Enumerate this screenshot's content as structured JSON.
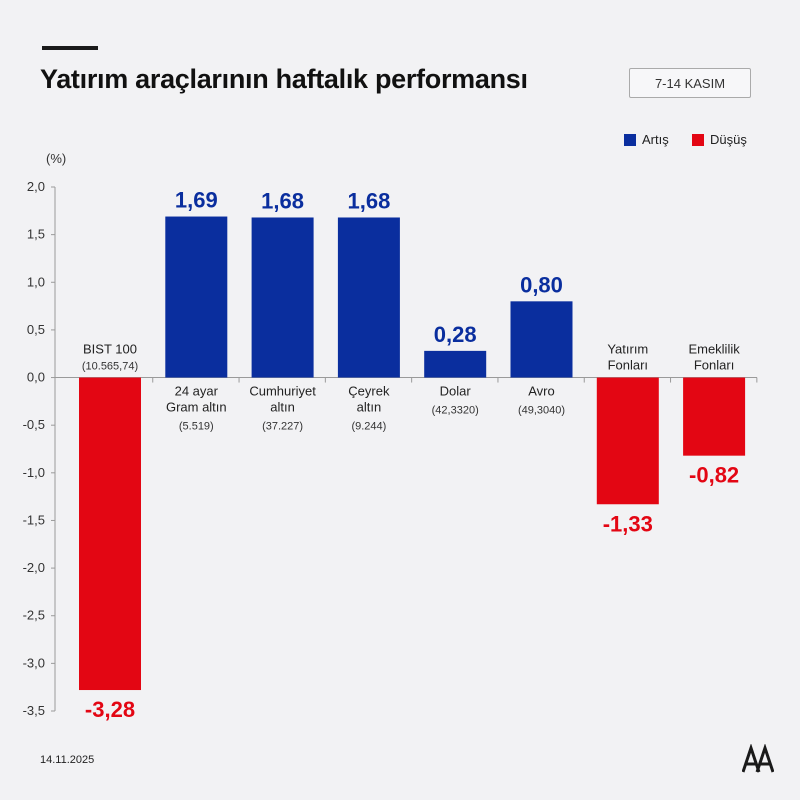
{
  "header": {
    "title": "Yatırım araçlarının haftalık performansı",
    "date_range": "7-14 KASIM"
  },
  "legend": {
    "up_label": "Artış",
    "down_label": "Düşüş"
  },
  "colors": {
    "up": "#0a2e9e",
    "down": "#e30613"
  },
  "footer": {
    "date": "14.11.2025",
    "logo_icon": "aa-logo-icon"
  },
  "chart_data": {
    "type": "bar",
    "ylabel": "(%)",
    "ylim": [
      -3.5,
      2.0
    ],
    "yticks": [
      2.0,
      1.5,
      1.0,
      0.5,
      0.0,
      -0.5,
      -1.0,
      -1.5,
      -2.0,
      -2.5,
      -3.0,
      -3.5
    ],
    "ytick_labels": [
      "2,0",
      "1,5",
      "1,0",
      "0,5",
      "0,0",
      "-0,5",
      "-1,0",
      "-1,5",
      "-2,0",
      "-2,5",
      "-3,0",
      "-3,5"
    ],
    "categories": [
      {
        "label_lines": [
          "BIST 100"
        ],
        "sub": "(10.565,74)",
        "value": -3.28,
        "value_label": "-3,28"
      },
      {
        "label_lines": [
          "24 ayar",
          "Gram altın"
        ],
        "sub": "(5.519)",
        "value": 1.69,
        "value_label": "1,69"
      },
      {
        "label_lines": [
          "Cumhuriyet",
          "altın"
        ],
        "sub": "(37.227)",
        "value": 1.68,
        "value_label": "1,68"
      },
      {
        "label_lines": [
          "Çeyrek",
          "altın"
        ],
        "sub": "(9.244)",
        "value": 1.68,
        "value_label": "1,68"
      },
      {
        "label_lines": [
          "Dolar"
        ],
        "sub": "(42,3320)",
        "value": 0.28,
        "value_label": "0,28"
      },
      {
        "label_lines": [
          "Avro"
        ],
        "sub": "(49,3040)",
        "value": 0.8,
        "value_label": "0,80"
      },
      {
        "label_lines": [
          "Yatırım",
          "Fonları"
        ],
        "sub": "",
        "value": -1.33,
        "value_label": "-1,33"
      },
      {
        "label_lines": [
          "Emeklilik",
          "Fonları"
        ],
        "sub": "",
        "value": -0.82,
        "value_label": "-0,82"
      }
    ]
  }
}
